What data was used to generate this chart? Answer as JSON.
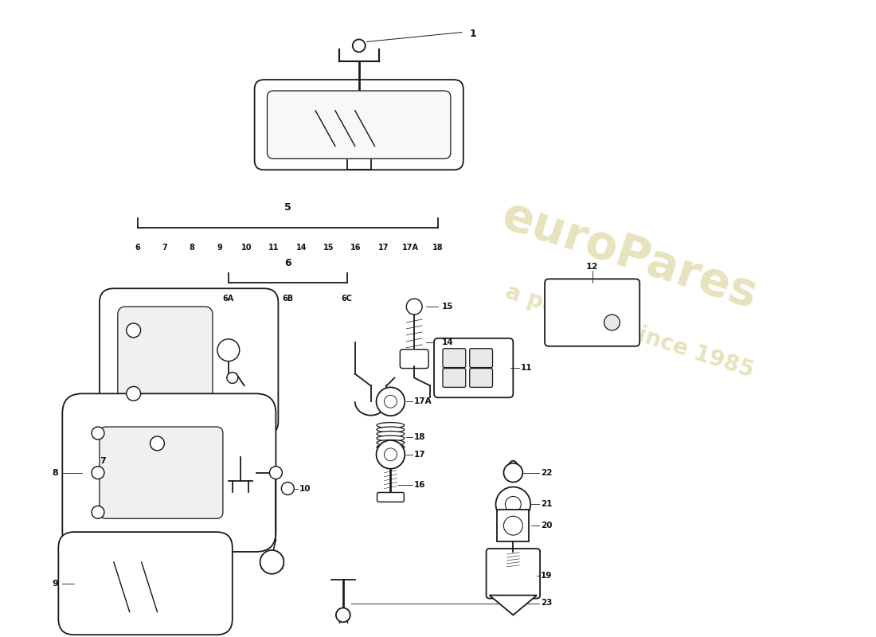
{
  "bg_color": "#ffffff",
  "line_color": "#1a1a1a",
  "lw": 1.3,
  "watermark1": "euroPares",
  "watermark2": "a passion since 1985",
  "wm_color": "#d4cc88",
  "wm_alpha": 0.55,
  "bracket5_label": "5",
  "bracket5_nums": [
    "6",
    "7",
    "8",
    "9",
    "10",
    "11",
    "14",
    "15",
    "16",
    "17",
    "17A",
    "18"
  ],
  "bracket6_label": "6",
  "bracket6_nums": [
    "6A",
    "6B",
    "6C"
  ]
}
